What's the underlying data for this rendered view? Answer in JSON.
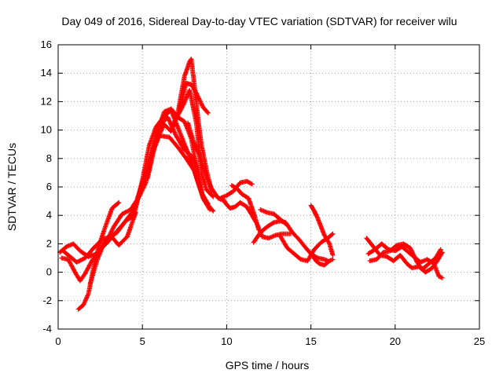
{
  "chart_data": {
    "type": "scatter",
    "title": "Day 049 of 2016, Sidereal Day-to-day VTEC variation (SDTVAR) for receiver wilu",
    "xlabel": "GPS time / hours",
    "ylabel": "SDTVAR / TECUs",
    "xlim": [
      0,
      25
    ],
    "ylim": [
      -4,
      16
    ],
    "xticks": [
      "0",
      "5",
      "10",
      "15",
      "20",
      "25"
    ],
    "yticks": [
      "-4",
      "-2",
      "0",
      "2",
      "4",
      "6",
      "8",
      "10",
      "12",
      "14",
      "16"
    ],
    "grid": true,
    "marker": "+",
    "series": [
      {
        "name": "satellite arcs",
        "color": "#ff0000",
        "arcs": [
          [
            [
              0.1,
              1.4
            ],
            [
              0.5,
              1.8
            ],
            [
              0.9,
              2.0
            ],
            [
              1.3,
              1.5
            ],
            [
              1.8,
              1.1
            ],
            [
              2.3,
              1.3
            ],
            [
              2.8,
              2.0
            ],
            [
              3.3,
              3.2
            ],
            [
              3.8,
              4.1
            ],
            [
              4.3,
              4.4
            ],
            [
              4.8,
              5.3
            ],
            [
              5.2,
              6.3
            ],
            [
              5.6,
              8.5
            ],
            [
              6.0,
              10.3
            ],
            [
              6.5,
              10.9
            ],
            [
              7.0,
              9.6
            ],
            [
              7.5,
              8.6
            ],
            [
              8.0,
              8.1
            ],
            [
              8.3,
              7.0
            ],
            [
              8.6,
              5.2
            ],
            [
              9.0,
              4.4
            ]
          ],
          [
            [
              0.2,
              1.0
            ],
            [
              0.6,
              0.9
            ],
            [
              1.0,
              0.0
            ],
            [
              1.3,
              -0.6
            ],
            [
              1.6,
              -0.1
            ],
            [
              2.0,
              0.8
            ],
            [
              2.5,
              1.6
            ],
            [
              3.0,
              2.2
            ],
            [
              3.5,
              2.9
            ],
            [
              4.0,
              3.6
            ],
            [
              4.5,
              4.4
            ],
            [
              5.0,
              6.1
            ],
            [
              5.5,
              8.1
            ],
            [
              6.0,
              9.6
            ],
            [
              6.6,
              9.5
            ],
            [
              7.1,
              8.8
            ],
            [
              7.6,
              8.0
            ],
            [
              8.1,
              7.1
            ],
            [
              8.5,
              5.6
            ],
            [
              8.9,
              4.8
            ]
          ],
          [
            [
              0.3,
              1.5
            ],
            [
              0.7,
              1.1
            ],
            [
              1.1,
              0.7
            ],
            [
              1.6,
              1.0
            ],
            [
              2.1,
              1.7
            ],
            [
              2.6,
              2.3
            ],
            [
              3.1,
              2.5
            ],
            [
              3.5,
              2.8
            ],
            [
              4.0,
              3.6
            ],
            [
              4.5,
              4.0
            ],
            [
              5.0,
              6.5
            ],
            [
              5.4,
              8.9
            ],
            [
              5.8,
              10.2
            ],
            [
              6.3,
              11.0
            ],
            [
              6.7,
              11.4
            ],
            [
              7.1,
              10.2
            ],
            [
              7.5,
              9.0
            ],
            [
              7.9,
              7.8
            ],
            [
              8.3,
              6.3
            ],
            [
              8.7,
              5.0
            ],
            [
              9.2,
              4.3
            ]
          ],
          [
            [
              1.2,
              -2.6
            ],
            [
              1.5,
              -2.3
            ],
            [
              1.8,
              -1.5
            ],
            [
              2.1,
              0.3
            ],
            [
              2.4,
              1.8
            ],
            [
              2.8,
              3.2
            ],
            [
              3.2,
              4.5
            ],
            [
              3.6,
              4.9
            ]
          ],
          [
            [
              1.9,
              -0.8
            ],
            [
              2.3,
              0.8
            ],
            [
              2.7,
              2.0
            ],
            [
              3.1,
              2.6
            ],
            [
              3.6,
              1.9
            ],
            [
              4.1,
              2.5
            ],
            [
              4.6,
              4.2
            ]
          ],
          [
            [
              4.7,
              5.2
            ],
            [
              5.1,
              6.6
            ],
            [
              5.5,
              8.1
            ],
            [
              5.9,
              9.9
            ],
            [
              6.3,
              11.3
            ],
            [
              6.7,
              11.5
            ],
            [
              7.1,
              10.9
            ],
            [
              7.5,
              10.6
            ],
            [
              7.9,
              9.4
            ],
            [
              8.2,
              7.5
            ],
            [
              8.4,
              6.0
            ],
            [
              8.6,
              5.2
            ]
          ],
          [
            [
              5.3,
              6.6
            ],
            [
              5.8,
              9.2
            ],
            [
              6.3,
              10.4
            ],
            [
              6.7,
              9.9
            ],
            [
              7.0,
              10.8
            ],
            [
              7.4,
              11.7
            ],
            [
              7.8,
              12.8
            ],
            [
              8.2,
              10.5
            ],
            [
              8.5,
              7.0
            ],
            [
              8.8,
              5.8
            ],
            [
              9.2,
              5.3
            ]
          ],
          [
            [
              6.8,
              10.3
            ],
            [
              7.1,
              11.2
            ],
            [
              7.3,
              12.5
            ],
            [
              7.5,
              13.8
            ],
            [
              7.8,
              14.8
            ],
            [
              7.9,
              15.0
            ],
            [
              8.1,
              13.0
            ],
            [
              8.3,
              10.8
            ],
            [
              8.5,
              9.0
            ],
            [
              8.8,
              7.2
            ],
            [
              9.1,
              5.7
            ]
          ],
          [
            [
              7.2,
              11.5
            ],
            [
              7.6,
              13.3
            ],
            [
              7.9,
              13.2
            ],
            [
              8.2,
              12.6
            ],
            [
              8.6,
              11.6
            ],
            [
              8.9,
              11.2
            ]
          ],
          [
            [
              7.7,
              10.5
            ],
            [
              8.0,
              9.3
            ],
            [
              8.4,
              8.2
            ],
            [
              8.7,
              7.0
            ],
            [
              9.1,
              5.9
            ],
            [
              9.5,
              5.2
            ],
            [
              9.9,
              5.0
            ]
          ],
          [
            [
              9.6,
              5.2
            ],
            [
              10.0,
              5.4
            ],
            [
              10.4,
              5.7
            ],
            [
              10.8,
              6.3
            ],
            [
              11.2,
              6.4
            ],
            [
              11.5,
              6.2
            ]
          ],
          [
            [
              9.9,
              4.9
            ],
            [
              10.2,
              4.5
            ],
            [
              10.5,
              4.6
            ],
            [
              10.8,
              4.9
            ],
            [
              11.2,
              4.6
            ],
            [
              11.5,
              4.0
            ],
            [
              11.8,
              3.4
            ],
            [
              12.1,
              2.5
            ],
            [
              12.5,
              2.4
            ],
            [
              12.9,
              2.6
            ],
            [
              13.3,
              2.7
            ],
            [
              13.8,
              2.7
            ]
          ],
          [
            [
              10.3,
              6.1
            ],
            [
              10.6,
              5.9
            ],
            [
              10.9,
              5.5
            ],
            [
              11.3,
              5.2
            ],
            [
              11.6,
              4.2
            ],
            [
              11.9,
              3.0
            ]
          ],
          [
            [
              11.6,
              2.1
            ],
            [
              12.0,
              2.8
            ],
            [
              12.4,
              3.2
            ],
            [
              12.8,
              3.5
            ],
            [
              13.2,
              3.6
            ],
            [
              13.5,
              3.5
            ],
            [
              13.9,
              2.8
            ],
            [
              14.3,
              2.3
            ],
            [
              14.7,
              1.7
            ],
            [
              15.0,
              1.3
            ],
            [
              15.4,
              1.0
            ],
            [
              15.8,
              0.9
            ],
            [
              16.0,
              0.8
            ]
          ],
          [
            [
              12.0,
              4.4
            ],
            [
              12.4,
              4.2
            ],
            [
              12.8,
              4.1
            ],
            [
              13.1,
              3.8
            ],
            [
              13.5,
              3.4
            ]
          ],
          [
            [
              13.2,
              2.5
            ],
            [
              13.6,
              1.7
            ],
            [
              14.0,
              1.3
            ],
            [
              14.4,
              0.9
            ],
            [
              14.8,
              0.8
            ],
            [
              15.2,
              1.6
            ],
            [
              15.6,
              2.1
            ],
            [
              16.0,
              2.4
            ],
            [
              16.3,
              2.7
            ]
          ],
          [
            [
              15.0,
              4.7
            ],
            [
              15.2,
              4.3
            ],
            [
              15.4,
              3.8
            ],
            [
              15.6,
              3.2
            ],
            [
              15.8,
              2.6
            ],
            [
              16.1,
              2.0
            ],
            [
              16.3,
              1.2
            ]
          ],
          [
            [
              15.0,
              1.3
            ],
            [
              15.3,
              0.8
            ],
            [
              15.5,
              0.6
            ],
            [
              15.8,
              0.5
            ],
            [
              16.1,
              0.8
            ],
            [
              16.3,
              0.9
            ]
          ],
          [
            [
              18.3,
              2.4
            ],
            [
              18.7,
              1.8
            ],
            [
              19.1,
              1.2
            ],
            [
              19.5,
              1.1
            ],
            [
              19.9,
              0.8
            ],
            [
              20.3,
              1.2
            ],
            [
              20.7,
              0.6
            ],
            [
              21.0,
              0.3
            ],
            [
              21.4,
              0.4
            ],
            [
              21.8,
              0.0
            ],
            [
              22.2,
              0.3
            ],
            [
              22.5,
              0.8
            ],
            [
              22.8,
              1.4
            ]
          ],
          [
            [
              18.4,
              1.3
            ],
            [
              18.8,
              1.6
            ],
            [
              19.2,
              2.0
            ],
            [
              19.6,
              1.6
            ],
            [
              20.0,
              1.5
            ],
            [
              20.4,
              1.8
            ],
            [
              20.8,
              1.4
            ],
            [
              21.1,
              1.1
            ],
            [
              21.5,
              0.7
            ],
            [
              21.9,
              0.9
            ],
            [
              22.3,
              0.6
            ],
            [
              22.6,
              -0.3
            ],
            [
              22.8,
              -0.4
            ]
          ],
          [
            [
              18.5,
              0.8
            ],
            [
              18.9,
              0.9
            ],
            [
              19.3,
              1.4
            ],
            [
              19.7,
              1.5
            ],
            [
              20.1,
              1.9
            ],
            [
              20.5,
              2.0
            ],
            [
              20.9,
              1.7
            ],
            [
              21.3,
              0.7
            ],
            [
              21.6,
              0.2
            ],
            [
              22.0,
              0.6
            ],
            [
              22.4,
              1.0
            ],
            [
              22.7,
              1.6
            ]
          ]
        ]
      }
    ]
  }
}
